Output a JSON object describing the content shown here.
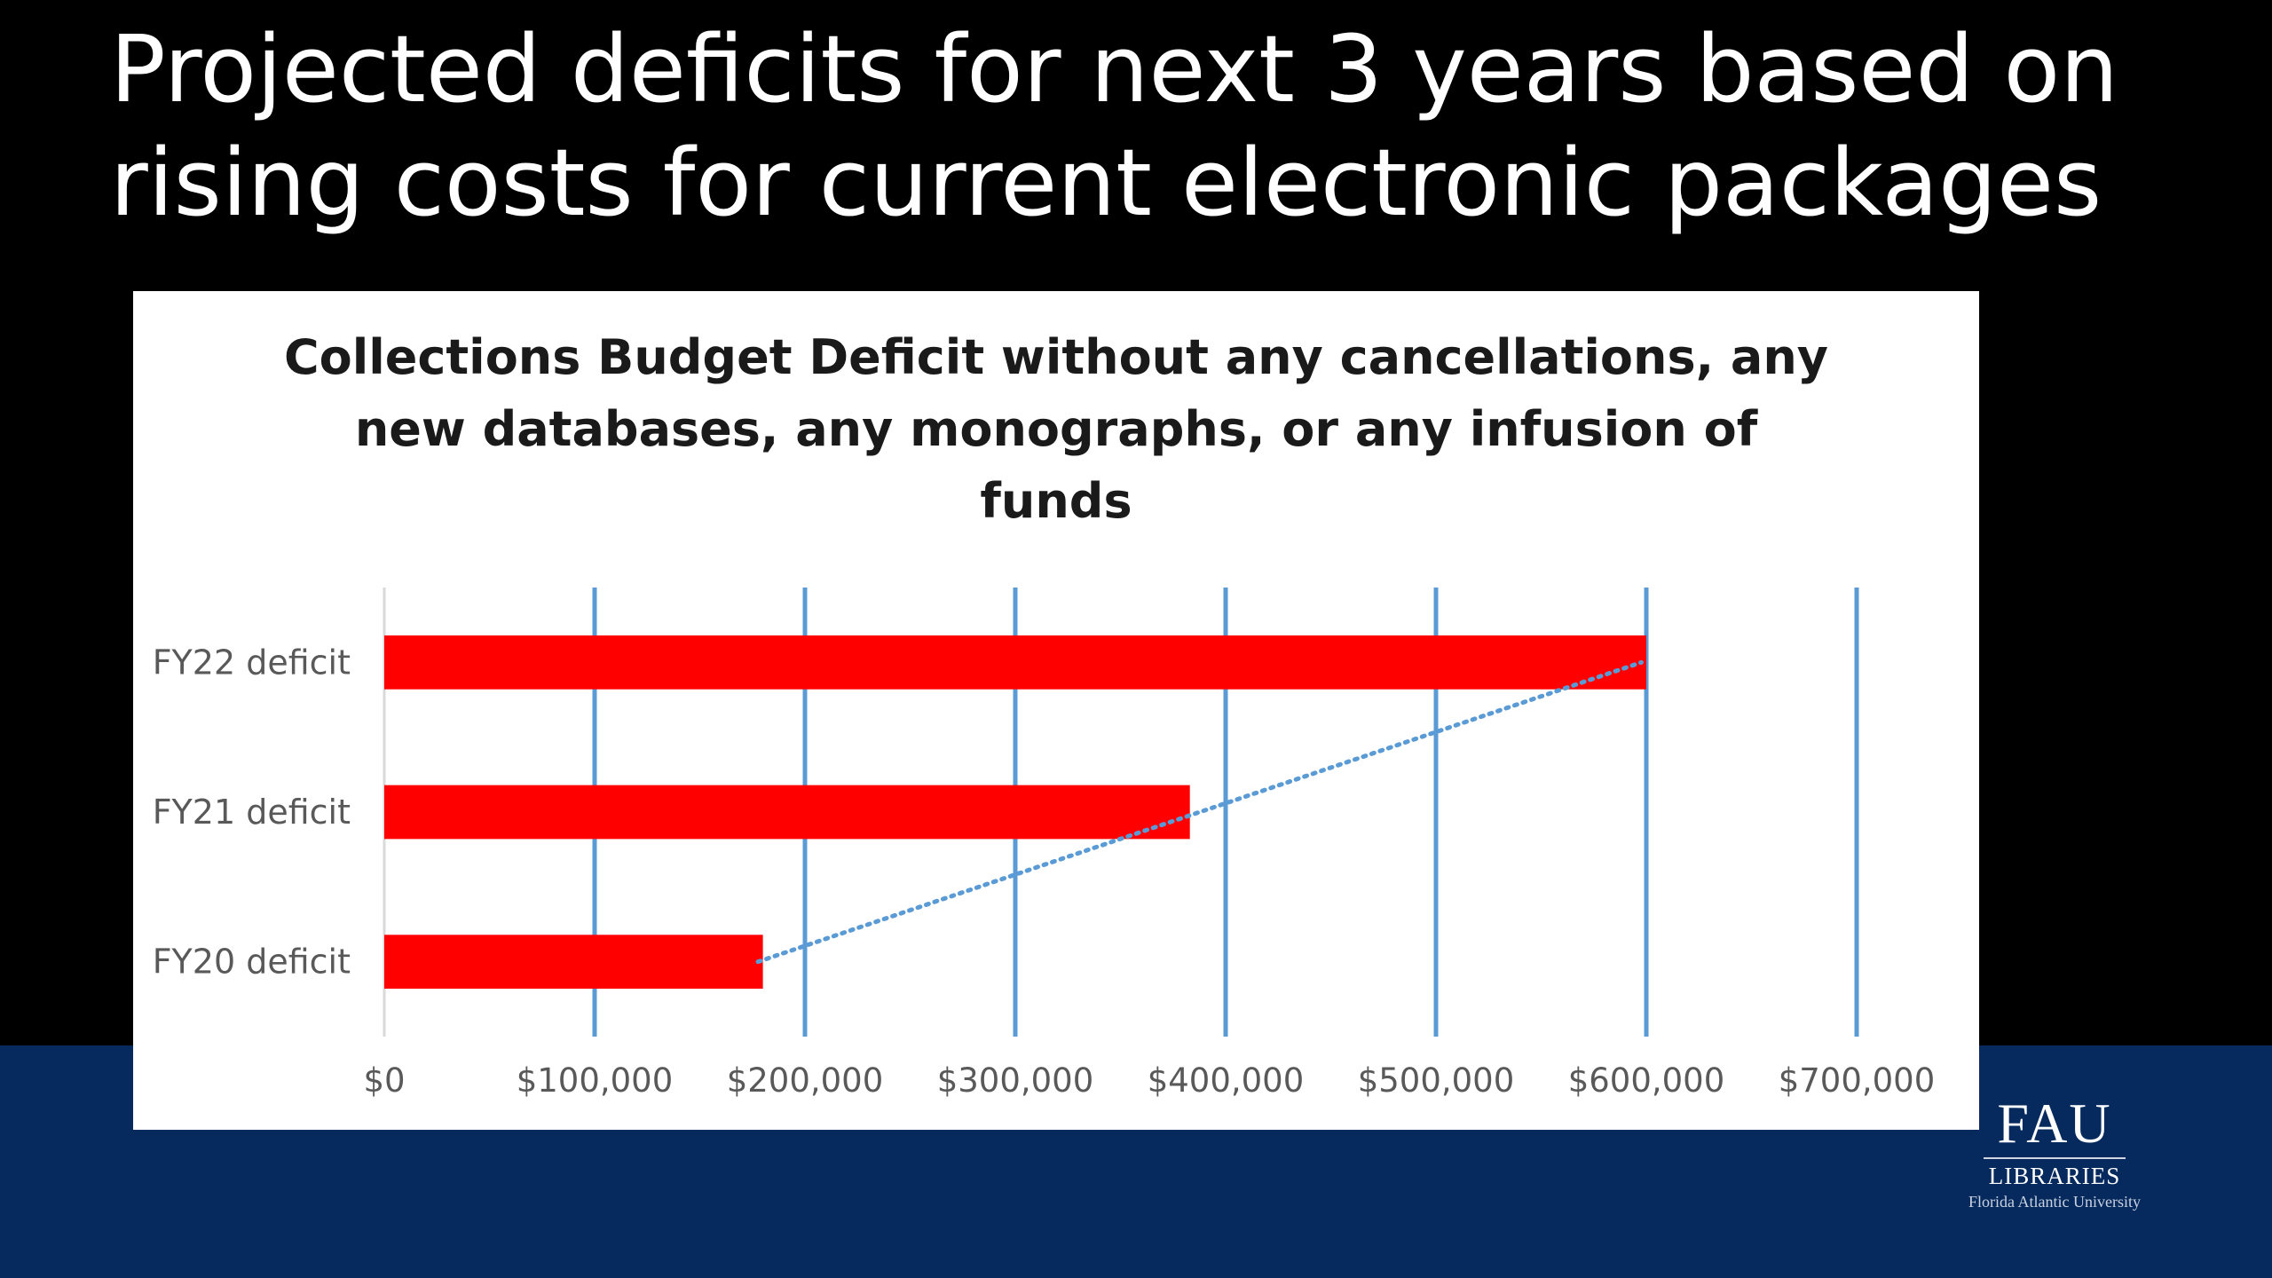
{
  "slide": {
    "title_lines": [
      "Projected deficits for next 3 years based on",
      "rising costs for current electronic packages"
    ]
  },
  "chart_data": {
    "type": "bar",
    "orientation": "horizontal",
    "title_lines": [
      "Collections Budget Deficit without any cancellations, any",
      "new databases, any monographs, or any infusion of",
      "funds"
    ],
    "categories": [
      "FY22 deficit",
      "FY21 deficit",
      "FY20 deficit"
    ],
    "values": [
      600000,
      383000,
      180000
    ],
    "xlim": [
      0,
      700000
    ],
    "x_ticks": [
      0,
      100000,
      200000,
      300000,
      400000,
      500000,
      600000,
      700000
    ],
    "x_tick_labels": [
      "$0",
      "$100,000",
      "$200,000",
      "$300,000",
      "$400,000",
      "$500,000",
      "$600,000",
      "$700,000"
    ],
    "grid": "vertical",
    "trendline": "linear, dotted",
    "legend": "none",
    "colors": {
      "bar": "#ff0000",
      "gridline": "#5b9bd5",
      "trendline": "#5b9bd5",
      "tick_label": "#595959"
    }
  },
  "footer": {
    "logo_mark": "FAU",
    "logo_libraries": "LIBRARIES",
    "logo_university": "Florida Atlantic University"
  },
  "colors": {
    "slide_background": "#000000",
    "bottom_band": "#062a5e",
    "chart_panel": "#ffffff"
  }
}
